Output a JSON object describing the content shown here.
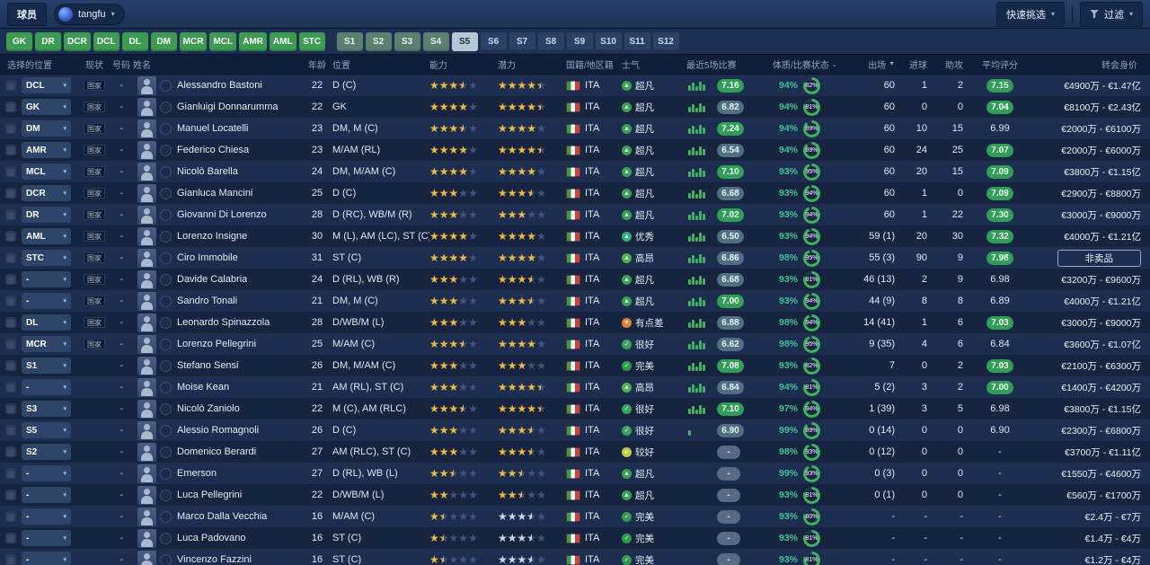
{
  "topbar": {
    "page_label": "球员",
    "profile_name": "tangfu",
    "quick_pick": "快速挑选",
    "filter": "过滤"
  },
  "colors": {
    "accent_green": "#3d9b52",
    "rating_green": "#2f9e57",
    "rating_slate": "#4e7082",
    "condition_teal": "#3cc49b",
    "star_gold": "#f2b83c"
  },
  "position_filters": [
    {
      "label": "GK",
      "state": "green"
    },
    {
      "label": "DR",
      "state": "green"
    },
    {
      "label": "DCR",
      "state": "green"
    },
    {
      "label": "DCL",
      "state": "green"
    },
    {
      "label": "DL",
      "state": "green"
    },
    {
      "label": "DM",
      "state": "green"
    },
    {
      "label": "MCR",
      "state": "green"
    },
    {
      "label": "MCL",
      "state": "green"
    },
    {
      "label": "AMR",
      "state": "green"
    },
    {
      "label": "AML",
      "state": "green"
    },
    {
      "label": "STC",
      "state": "green"
    },
    {
      "label": "S1",
      "state": "muted",
      "gap_before": true
    },
    {
      "label": "S2",
      "state": "muted"
    },
    {
      "label": "S3",
      "state": "muted"
    },
    {
      "label": "S4",
      "state": "muted"
    },
    {
      "label": "S5",
      "state": "active"
    },
    {
      "label": "S6",
      "state": "dark"
    },
    {
      "label": "S7",
      "state": "dark"
    },
    {
      "label": "S8",
      "state": "dark"
    },
    {
      "label": "S9",
      "state": "dark"
    },
    {
      "label": "S10",
      "state": "dark"
    },
    {
      "label": "S11",
      "state": "dark"
    },
    {
      "label": "S12",
      "state": "dark"
    }
  ],
  "table": {
    "headers": [
      {
        "label": "选择的位置"
      },
      {
        "label": "现状"
      },
      {
        "label": "号码"
      },
      {
        "label": "姓名"
      },
      {
        "label": "年龄"
      },
      {
        "label": "位置"
      },
      {
        "label": "能力"
      },
      {
        "label": "潜力"
      },
      {
        "label": "国籍/地区籍"
      },
      {
        "label": "士气"
      },
      {
        "label": "最近5场比赛"
      },
      {
        "label": "体质/比赛状态",
        "arrow": "⌄"
      },
      {
        "label": "出场",
        "arrow": "▼"
      },
      {
        "label": "进球"
      },
      {
        "label": "助攻"
      },
      {
        "label": "平均评分"
      },
      {
        "label": "转会身价"
      }
    ]
  },
  "morale_icons": {
    "超凡": {
      "color": "#35a351",
      "glyph": "▲"
    },
    "优秀": {
      "color": "#2fae7e",
      "glyph": "▲"
    },
    "高昂": {
      "color": "#54b24a",
      "glyph": "▲"
    },
    "很好": {
      "color": "#37a65b",
      "glyph": "✓"
    },
    "完美": {
      "color": "#2a9d4e",
      "glyph": "✓"
    },
    "较好": {
      "color": "#c0ca43",
      "glyph": "▸"
    },
    "有点差": {
      "color": "#e2832f",
      "glyph": "▼"
    }
  },
  "rows": [
    {
      "slot": "DCL",
      "status": "国家",
      "number": "-",
      "name": "Alessandro Bastoni",
      "age": "22",
      "position": "D (C)",
      "ability": 3.5,
      "potential": 4.5,
      "potential_silver": false,
      "nation": "ITA",
      "morale": "超凡",
      "form_bars": 5,
      "form_rating": "7.16",
      "form_style": "green",
      "condition": "94%",
      "fitness_pct": 82,
      "apps": "60",
      "goals": "1",
      "assists": "2",
      "avg": "7.15",
      "avg_style": "green",
      "value": "€4900万 - €1.47亿",
      "value_boxed": false
    },
    {
      "slot": "GK",
      "status": "国家",
      "number": "-",
      "name": "Gianluigi Donnarumma",
      "age": "22",
      "position": "GK",
      "ability": 4,
      "potential": 4.5,
      "potential_silver": false,
      "nation": "ITA",
      "morale": "超凡",
      "form_bars": 5,
      "form_rating": "6.82",
      "form_style": "slate",
      "condition": "94%",
      "fitness_pct": 81,
      "apps": "60",
      "goals": "0",
      "assists": "0",
      "avg": "7.04",
      "avg_style": "green",
      "value": "€8100万 - €2.43亿",
      "value_boxed": false
    },
    {
      "slot": "DM",
      "status": "国家",
      "number": "-",
      "name": "Manuel Locatelli",
      "age": "23",
      "position": "DM, M (C)",
      "ability": 3.5,
      "potential": 4,
      "potential_silver": false,
      "nation": "ITA",
      "morale": "超凡",
      "form_bars": 5,
      "form_rating": "7.24",
      "form_style": "green",
      "condition": "94%",
      "fitness_pct": 89,
      "apps": "60",
      "goals": "10",
      "assists": "15",
      "avg": "6.99",
      "avg_style": "plain",
      "value": "€2000万 - €6100万",
      "value_boxed": false
    },
    {
      "slot": "AMR",
      "status": "国家",
      "number": "-",
      "name": "Federico Chiesa",
      "age": "23",
      "position": "M/AM (RL)",
      "ability": 4,
      "potential": 4.5,
      "potential_silver": false,
      "nation": "ITA",
      "morale": "超凡",
      "form_bars": 5,
      "form_rating": "6.54",
      "form_style": "slate",
      "condition": "94%",
      "fitness_pct": 89,
      "apps": "60",
      "goals": "24",
      "assists": "25",
      "avg": "7.07",
      "avg_style": "green",
      "value": "€2000万 - €6000万",
      "value_boxed": false
    },
    {
      "slot": "MCL",
      "status": "国家",
      "number": "-",
      "name": "Nicolò Barella",
      "age": "24",
      "position": "DM, M/AM (C)",
      "ability": 4,
      "potential": 4,
      "potential_silver": false,
      "nation": "ITA",
      "morale": "超凡",
      "form_bars": 5,
      "form_rating": "7.10",
      "form_style": "green",
      "condition": "93%",
      "fitness_pct": 95,
      "apps": "60",
      "goals": "20",
      "assists": "15",
      "avg": "7.09",
      "avg_style": "green",
      "value": "€3800万 - €1.15亿",
      "value_boxed": false
    },
    {
      "slot": "DCR",
      "status": "国家",
      "number": "-",
      "name": "Gianluca Mancini",
      "age": "25",
      "position": "D (C)",
      "ability": 3,
      "potential": 3.5,
      "potential_silver": false,
      "nation": "ITA",
      "morale": "超凡",
      "form_bars": 5,
      "form_rating": "6.68",
      "form_style": "slate",
      "condition": "93%",
      "fitness_pct": 94,
      "apps": "60",
      "goals": "1",
      "assists": "0",
      "avg": "7.09",
      "avg_style": "green",
      "value": "€2900万 - €8800万",
      "value_boxed": false
    },
    {
      "slot": "DR",
      "status": "国家",
      "number": "-",
      "name": "Giovanni Di Lorenzo",
      "age": "28",
      "position": "D (RC), WB/M (R)",
      "ability": 3,
      "potential": 3,
      "potential_silver": false,
      "nation": "ITA",
      "morale": "超凡",
      "form_bars": 5,
      "form_rating": "7.02",
      "form_style": "green",
      "condition": "93%",
      "fitness_pct": 94,
      "apps": "60",
      "goals": "1",
      "assists": "22",
      "avg": "7.30",
      "avg_style": "green",
      "value": "€3000万 - €9000万",
      "value_boxed": false
    },
    {
      "slot": "AML",
      "status": "国家",
      "number": "-",
      "name": "Lorenzo Insigne",
      "age": "30",
      "position": "M (L), AM (LC), ST (C)",
      "ability": 4,
      "potential": 4,
      "potential_silver": false,
      "nation": "ITA",
      "morale": "优秀",
      "form_bars": 5,
      "form_rating": "6.50",
      "form_style": "slate",
      "condition": "93%",
      "fitness_pct": 94,
      "apps": "59 (1)",
      "goals": "20",
      "assists": "30",
      "avg": "7.32",
      "avg_style": "green",
      "value": "€4000万 - €1.21亿",
      "value_boxed": false
    },
    {
      "slot": "STC",
      "status": "国家",
      "number": "-",
      "name": "Ciro Immobile",
      "age": "31",
      "position": "ST (C)",
      "ability": 4,
      "potential": 4,
      "potential_silver": false,
      "nation": "ITA",
      "morale": "高昂",
      "form_bars": 5,
      "form_rating": "6.86",
      "form_style": "slate",
      "condition": "98%",
      "fitness_pct": 95,
      "apps": "55 (3)",
      "goals": "90",
      "assists": "9",
      "avg": "7.98",
      "avg_style": "green",
      "value": "非卖品",
      "value_boxed": true
    },
    {
      "slot": "-",
      "status": "国家",
      "number": "-",
      "name": "Davide Calabria",
      "age": "24",
      "position": "D (RL), WB (R)",
      "ability": 3,
      "potential": 3.5,
      "potential_silver": false,
      "nation": "ITA",
      "morale": "超凡",
      "form_bars": 5,
      "form_rating": "6.68",
      "form_style": "slate",
      "condition": "93%",
      "fitness_pct": 81,
      "apps": "46 (13)",
      "goals": "2",
      "assists": "9",
      "avg": "6.98",
      "avg_style": "plain",
      "value": "€3200万 - €9600万",
      "value_boxed": false
    },
    {
      "slot": "-",
      "status": "国家",
      "number": "-",
      "name": "Sandro Tonali",
      "age": "21",
      "position": "DM, M (C)",
      "ability": 3,
      "potential": 3.5,
      "potential_silver": false,
      "nation": "ITA",
      "morale": "超凡",
      "form_bars": 5,
      "form_rating": "7.00",
      "form_style": "green",
      "condition": "93%",
      "fitness_pct": 94,
      "apps": "44 (9)",
      "goals": "8",
      "assists": "8",
      "avg": "6.89",
      "avg_style": "plain",
      "value": "€4000万 - €1.21亿",
      "value_boxed": false
    },
    {
      "slot": "DL",
      "status": "国家",
      "number": "-",
      "name": "Leonardo Spinazzola",
      "age": "28",
      "position": "D/WB/M (L)",
      "ability": 3,
      "potential": 3,
      "potential_silver": false,
      "nation": "ITA",
      "morale": "有点差",
      "form_bars": 5,
      "form_rating": "6.88",
      "form_style": "slate",
      "condition": "98%",
      "fitness_pct": 94,
      "apps": "14 (41)",
      "goals": "1",
      "assists": "6",
      "avg": "7.03",
      "avg_style": "green",
      "value": "€3000万 - €9000万",
      "value_boxed": false
    },
    {
      "slot": "MCR",
      "status": "国家",
      "number": "-",
      "name": "Lorenzo Pellegrini",
      "age": "25",
      "position": "M/AM (C)",
      "ability": 3.5,
      "potential": 4,
      "potential_silver": false,
      "nation": "ITA",
      "morale": "很好",
      "form_bars": 5,
      "form_rating": "6.62",
      "form_style": "slate",
      "condition": "98%",
      "fitness_pct": 95,
      "apps": "9 (35)",
      "goals": "4",
      "assists": "6",
      "avg": "6.84",
      "avg_style": "plain",
      "value": "€3600万 - €1.07亿",
      "value_boxed": false
    },
    {
      "slot": "S1",
      "status": "",
      "number": "-",
      "name": "Stefano Sensi",
      "age": "26",
      "position": "DM, M/AM (C)",
      "ability": 3,
      "potential": 3,
      "potential_silver": false,
      "nation": "ITA",
      "morale": "完美",
      "form_bars": 5,
      "form_rating": "7.08",
      "form_style": "green",
      "condition": "93%",
      "fitness_pct": 82,
      "apps": "7",
      "goals": "0",
      "assists": "2",
      "avg": "7.03",
      "avg_style": "green",
      "value": "€2100万 - €6300万",
      "value_boxed": false
    },
    {
      "slot": "-",
      "status": "",
      "number": "-",
      "name": "Moise Kean",
      "age": "21",
      "position": "AM (RL), ST (C)",
      "ability": 3,
      "potential": 4.5,
      "potential_silver": false,
      "nation": "ITA",
      "morale": "高昂",
      "form_bars": 5,
      "form_rating": "6.84",
      "form_style": "slate",
      "condition": "94%",
      "fitness_pct": 81,
      "apps": "5 (2)",
      "goals": "3",
      "assists": "2",
      "avg": "7.00",
      "avg_style": "green",
      "value": "€1400万 - €4200万",
      "value_boxed": false
    },
    {
      "slot": "S3",
      "status": "",
      "number": "-",
      "name": "Nicolò Zaniolo",
      "age": "22",
      "position": "M (C), AM (RLC)",
      "ability": 3.5,
      "potential": 4.5,
      "potential_silver": false,
      "nation": "ITA",
      "morale": "很好",
      "form_bars": 5,
      "form_rating": "7.10",
      "form_style": "green",
      "condition": "97%",
      "fitness_pct": 94,
      "apps": "1 (39)",
      "goals": "3",
      "assists": "5",
      "avg": "6.98",
      "avg_style": "plain",
      "value": "€3800万 - €1.15亿",
      "value_boxed": false
    },
    {
      "slot": "S5",
      "status": "",
      "number": "-",
      "name": "Alessio Romagnoli",
      "age": "26",
      "position": "D (C)",
      "ability": 3,
      "potential": 3.5,
      "potential_silver": false,
      "nation": "ITA",
      "morale": "很好",
      "form_bars": 1,
      "form_rating": "6.90",
      "form_style": "slate",
      "condition": "99%",
      "fitness_pct": 89,
      "apps": "0 (14)",
      "goals": "0",
      "assists": "0",
      "avg": "6.90",
      "avg_style": "plain",
      "value": "€2300万 - €6800万",
      "value_boxed": false
    },
    {
      "slot": "S2",
      "status": "",
      "number": "-",
      "name": "Domenico Berardi",
      "age": "27",
      "position": "AM (RLC), ST (C)",
      "ability": 3,
      "potential": 3.5,
      "potential_silver": false,
      "nation": "ITA",
      "morale": "较好",
      "form_bars": 0,
      "form_rating": "-",
      "form_style": "grey",
      "condition": "98%",
      "fitness_pct": 93,
      "apps": "0 (12)",
      "goals": "0",
      "assists": "0",
      "avg": "-",
      "avg_style": "plain",
      "value": "€3700万 - €1.11亿",
      "value_boxed": false
    },
    {
      "slot": "-",
      "status": "",
      "number": "-",
      "name": "Emerson",
      "age": "27",
      "position": "D (RL), WB (L)",
      "ability": 2.5,
      "potential": 2.5,
      "potential_silver": false,
      "nation": "ITA",
      "morale": "超凡",
      "form_bars": 0,
      "form_rating": "-",
      "form_style": "grey",
      "condition": "99%",
      "fitness_pct": 93,
      "apps": "0 (3)",
      "goals": "0",
      "assists": "0",
      "avg": "-",
      "avg_style": "plain",
      "value": "€1550万 - €4600万",
      "value_boxed": false
    },
    {
      "slot": "-",
      "status": "",
      "number": "-",
      "name": "Luca Pellegrini",
      "age": "22",
      "position": "D/WB/M (L)",
      "ability": 2,
      "potential": 2.5,
      "potential_silver": false,
      "nation": "ITA",
      "morale": "超凡",
      "form_bars": 0,
      "form_rating": "-",
      "form_style": "grey",
      "condition": "93%",
      "fitness_pct": 81,
      "apps": "0 (1)",
      "goals": "0",
      "assists": "0",
      "avg": "-",
      "avg_style": "plain",
      "value": "€560万 - €1700万",
      "value_boxed": false
    },
    {
      "slot": "-",
      "status": "",
      "number": "-",
      "name": "Marco Dalla Vecchia",
      "age": "16",
      "position": "M/AM (C)",
      "ability": 1.5,
      "potential": 3.5,
      "potential_silver": true,
      "nation": "ITA",
      "morale": "完美",
      "form_bars": 0,
      "form_rating": "-",
      "form_style": "grey",
      "condition": "93%",
      "fitness_pct": 80,
      "apps": "-",
      "goals": "-",
      "assists": "-",
      "avg": "-",
      "avg_style": "plain",
      "value": "€2.4万 - €7万",
      "value_boxed": false
    },
    {
      "slot": "-",
      "status": "",
      "number": "-",
      "name": "Luca Padovano",
      "age": "16",
      "position": "ST (C)",
      "ability": 1.5,
      "potential": 3.5,
      "potential_silver": true,
      "nation": "ITA",
      "morale": "完美",
      "form_bars": 0,
      "form_rating": "-",
      "form_style": "grey",
      "condition": "93%",
      "fitness_pct": 81,
      "apps": "-",
      "goals": "-",
      "assists": "-",
      "avg": "-",
      "avg_style": "plain",
      "value": "€1.4万 - €4万",
      "value_boxed": false
    },
    {
      "slot": "-",
      "status": "",
      "number": "-",
      "name": "Vincenzo Fazzini",
      "age": "16",
      "position": "ST (C)",
      "ability": 1.5,
      "potential": 3.5,
      "potential_silver": true,
      "nation": "ITA",
      "morale": "完美",
      "form_bars": 0,
      "form_rating": "-",
      "form_style": "grey",
      "condition": "93%",
      "fitness_pct": 81,
      "apps": "-",
      "goals": "-",
      "assists": "-",
      "avg": "-",
      "avg_style": "plain",
      "value": "€1.2万 - €4万",
      "value_boxed": false
    }
  ]
}
